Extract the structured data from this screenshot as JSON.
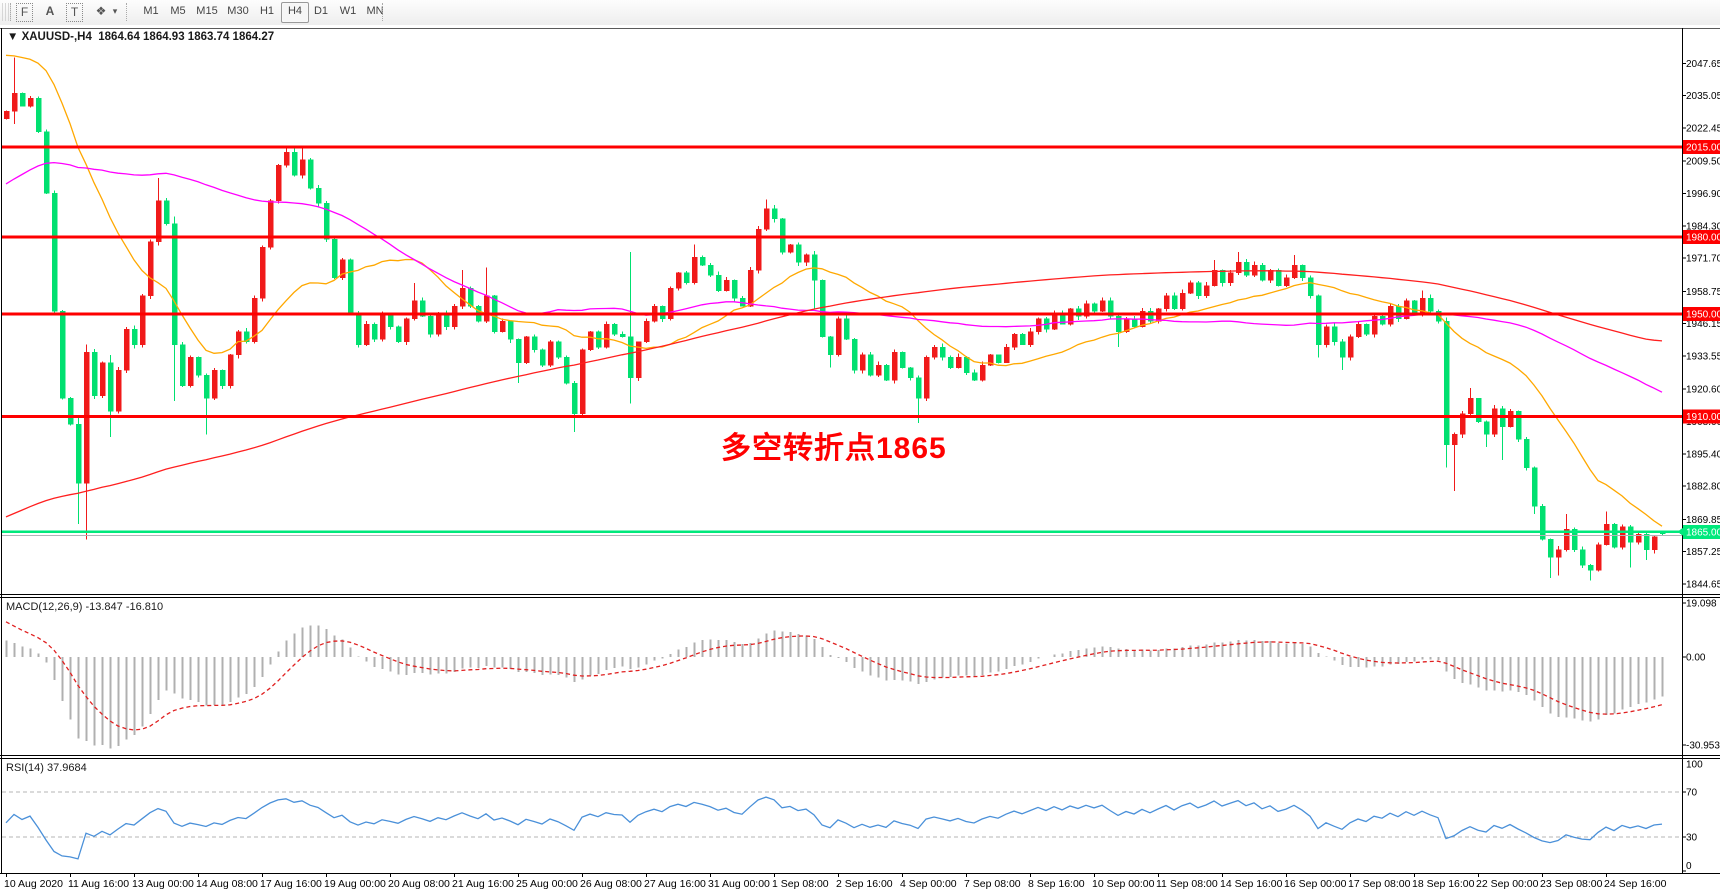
{
  "toolbar": {
    "icons": [
      {
        "name": "toolbar-grip"
      },
      {
        "name": "indicator-list-icon",
        "glyph": "F"
      },
      {
        "name": "text-label-icon",
        "glyph": "A"
      },
      {
        "name": "text-box-icon",
        "glyph": "T"
      },
      {
        "name": "shapes-icon",
        "glyph": "❖"
      },
      {
        "name": "dropdown-caret",
        "glyph": "▾"
      }
    ],
    "timeframes": [
      "M1",
      "M5",
      "M15",
      "M30",
      "H1",
      "H4",
      "D1",
      "W1",
      "MN"
    ],
    "selected_timeframe": "H4"
  },
  "chart": {
    "title_symbol": "XAUUSD-,H4",
    "title_ohlc": "1864.64 1864.93 1863.74 1864.27",
    "annotation": {
      "text": "多空转折点1865",
      "color": "#ff0000"
    },
    "y_ticks": [
      "2047.65",
      "2035.05",
      "2022.45",
      "2009.50",
      "1996.90",
      "1984.30",
      "1971.70",
      "1958.75",
      "1946.15",
      "1933.55",
      "1920.60",
      "1908.00",
      "1895.40",
      "1882.80",
      "1869.85",
      "1857.25",
      "1844.65"
    ],
    "x_labels": [
      "10 Aug 2020",
      "11 Aug 16:00",
      "13 Aug 00:00",
      "14 Aug 08:00",
      "17 Aug 16:00",
      "19 Aug 00:00",
      "20 Aug 08:00",
      "21 Aug 16:00",
      "25 Aug 00:00",
      "26 Aug 08:00",
      "27 Aug 16:00",
      "31 Aug 00:00",
      "1 Sep 08:00",
      "2 Sep 16:00",
      "4 Sep 00:00",
      "7 Sep 08:00",
      "8 Sep 16:00",
      "10 Sep 00:00",
      "11 Sep 08:00",
      "14 Sep 16:00",
      "16 Sep 00:00",
      "17 Sep 08:00",
      "18 Sep 16:00",
      "22 Sep 00:00",
      "23 Sep 08:00",
      "24 Sep 16:00"
    ],
    "hlines": [
      {
        "price": 2015.0,
        "label": "2015.00",
        "color": "#fe0000"
      },
      {
        "price": 1980.0,
        "label": "1980.00",
        "color": "#fe0000"
      },
      {
        "price": 1950.0,
        "label": "1950.00",
        "color": "#fe0000"
      },
      {
        "price": 1910.0,
        "label": "1910.00",
        "color": "#fe0000"
      }
    ],
    "current_line": {
      "price": 1865.0,
      "label": "1865.00",
      "color": "#00e97c"
    },
    "bid_line": {
      "price": 1864.27,
      "color": "#b0b4b8"
    }
  },
  "chart_data": {
    "type": "candlestick",
    "symbol": "XAUUSD",
    "timeframe": "H4",
    "up_color": "#f01a1a",
    "down_color": "#00e070",
    "open_first": 2026,
    "closes": [
      2029,
      2036,
      2031,
      2034,
      2021,
      1997,
      1951,
      1917,
      1907,
      1884,
      1935,
      1918,
      1931,
      1912,
      1928,
      1944,
      1938,
      1957,
      1978,
      1994,
      1985,
      1938,
      1922,
      1933,
      1926,
      1917,
      1928,
      1922,
      1934,
      1943,
      1939,
      1956,
      1976,
      1994,
      2008,
      2013,
      2004,
      2010,
      1999,
      1993,
      1979,
      1964,
      1971,
      1950,
      1938,
      1946,
      1940,
      1950,
      1945,
      1939,
      1948,
      1955,
      1949,
      1942,
      1950,
      1945,
      1953,
      1960,
      1953,
      1947,
      1957,
      1943,
      1947,
      1940,
      1931,
      1941,
      1936,
      1930,
      1939,
      1933,
      1923,
      1911,
      1936,
      1943,
      1937,
      1946,
      1942,
      1941,
      1925,
      1939,
      1947,
      1953,
      1948,
      1960,
      1966,
      1962,
      1972,
      1969,
      1965,
      1959,
      1963,
      1956,
      1953,
      1967,
      1983,
      1991,
      1987,
      1974,
      1977,
      1970,
      1973,
      1963,
      1941,
      1934,
      1948,
      1940,
      1928,
      1934,
      1926,
      1930,
      1924,
      1935,
      1929,
      1925,
      1917,
      1933,
      1937,
      1933,
      1929,
      1933,
      1927,
      1924,
      1930,
      1934,
      1931,
      1937,
      1942,
      1938,
      1943,
      1948,
      1944,
      1950,
      1946,
      1952,
      1949,
      1954,
      1951,
      1955,
      1949,
      1943,
      1948,
      1945,
      1951,
      1947,
      1952,
      1957,
      1952,
      1958,
      1962,
      1957,
      1961,
      1967,
      1962,
      1966,
      1970,
      1965,
      1969,
      1963,
      1967,
      1961,
      1964,
      1969,
      1964,
      1957,
      1938,
      1945,
      1939,
      1933,
      1941,
      1946,
      1942,
      1949,
      1946,
      1953,
      1948,
      1955,
      1950,
      1956,
      1951,
      1947,
      1899,
      1903,
      1911,
      1917,
      1908,
      1903,
      1913,
      1906,
      1912,
      1901,
      1890,
      1875,
      1862,
      1855,
      1858,
      1866,
      1858,
      1852,
      1850,
      1860,
      1868,
      1859,
      1867,
      1861,
      1864,
      1858,
      1863,
      1864.3
    ],
    "last_bar": {
      "open": 1864.64,
      "high": 1864.93,
      "low": 1863.74,
      "close": 1864.27
    },
    "wick_overrides": {
      "1": [
        2050,
        2024
      ],
      "9": [
        1910,
        1868
      ],
      "10": [
        1938,
        1862
      ],
      "13": [
        1934,
        1902
      ],
      "19": [
        2003,
        null
      ],
      "21": [
        1988,
        1916
      ],
      "25": [
        null,
        1903
      ],
      "35": [
        2015.3,
        null
      ],
      "37": [
        2014.5,
        null
      ],
      "51": [
        1962,
        null
      ],
      "57": [
        1967,
        null
      ],
      "60": [
        1968,
        null
      ],
      "64": [
        null,
        1923
      ],
      "71": [
        null,
        1904
      ],
      "78": [
        1974,
        1915
      ],
      "86": [
        1977,
        null
      ],
      "95": [
        1994.5,
        null
      ],
      "101": [
        null,
        1952
      ],
      "103": [
        null,
        1929
      ],
      "114": [
        null,
        1907.5
      ],
      "139": [
        null,
        1937
      ],
      "151": [
        1971,
        null
      ],
      "154": [
        1974,
        null
      ],
      "161": [
        1973,
        null
      ],
      "164": [
        null,
        1933
      ],
      "167": [
        null,
        1928
      ],
      "177": [
        1959,
        null
      ],
      "180": [
        null,
        1890
      ],
      "181": [
        null,
        1881
      ],
      "183": [
        1921,
        null
      ],
      "185": [
        null,
        1898
      ],
      "187": [
        null,
        1893
      ],
      "191": [
        null,
        1872
      ],
      "193": [
        null,
        1847
      ],
      "194": [
        null,
        1848
      ],
      "195": [
        1872,
        null
      ],
      "198": [
        null,
        1846
      ],
      "200": [
        1873,
        null
      ],
      "203": [
        null,
        1851
      ],
      "205": [
        null,
        1854
      ]
    },
    "history_spec": [
      [
        104,
        1768,
        1822
      ],
      [
        64,
        1822,
        1992
      ],
      [
        22,
        1992,
        2070
      ],
      [
        10,
        2066,
        2032
      ]
    ]
  },
  "indicators": {
    "mas": [
      {
        "name": "ma-fast",
        "period": 20,
        "color": "#ffa800"
      },
      {
        "name": "ma-mid",
        "period": 60,
        "color": "#ff00ff"
      },
      {
        "name": "ma-slow",
        "period": 200,
        "color": "#ff1f1f"
      }
    ],
    "macd": {
      "label": "MACD(12,26,9) -13.847 -16.810",
      "params": [
        12,
        26,
        9
      ],
      "scale_labels": [
        "19.098",
        "0.00",
        "-30.953"
      ],
      "hist_color": "#b0b0b0",
      "signal_color": "#e02020"
    },
    "rsi": {
      "label": "RSI(14) 37.9684",
      "period": 14,
      "levels": [
        "100",
        "70",
        "30",
        "0"
      ],
      "line_color": "#4a90d9"
    }
  }
}
